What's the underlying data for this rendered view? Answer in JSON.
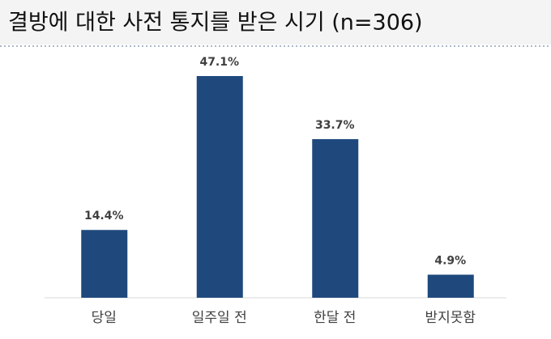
{
  "chart_data": {
    "type": "bar",
    "title": "결방에 대한 사전 통지를 받은 시기 (n=306)",
    "categories": [
      "당일",
      "일주일 전",
      "한달 전",
      "받지못함"
    ],
    "values": [
      14.4,
      47.1,
      33.7,
      4.9
    ],
    "value_labels": [
      "14.4%",
      "47.1%",
      "33.7%",
      "4.9%"
    ],
    "color": "#1f497d"
  }
}
